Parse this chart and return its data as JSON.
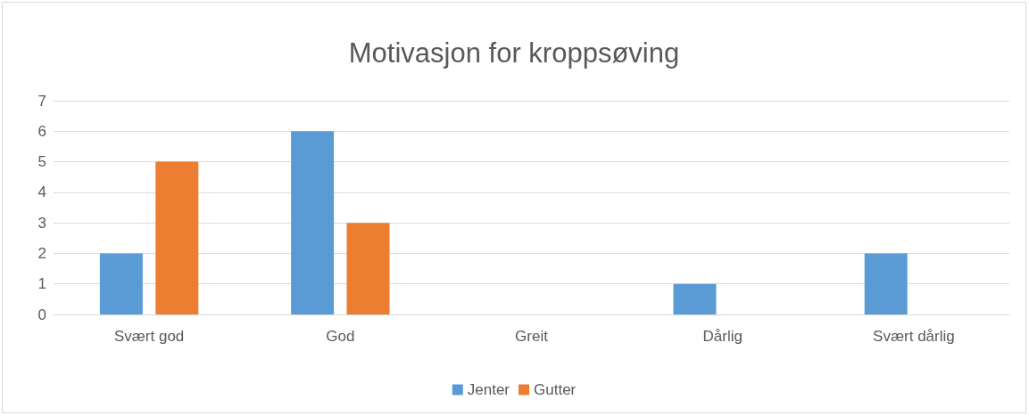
{
  "chart_data": {
    "type": "bar",
    "title": "Motivasjon for kroppsøving",
    "categories": [
      "Svært god",
      "God",
      "Greit",
      "Dårlig",
      "Svært dårlig"
    ],
    "series": [
      {
        "name": "Jenter",
        "color": "#5b9bd5",
        "values": [
          2,
          6,
          0,
          1,
          2
        ]
      },
      {
        "name": "Gutter",
        "color": "#ed7d31",
        "values": [
          5,
          3,
          0,
          0,
          0
        ]
      }
    ],
    "ylim": [
      0,
      7
    ],
    "yticks": [
      0,
      1,
      2,
      3,
      4,
      5,
      6,
      7
    ],
    "grid": "y",
    "legend": "bottom"
  }
}
